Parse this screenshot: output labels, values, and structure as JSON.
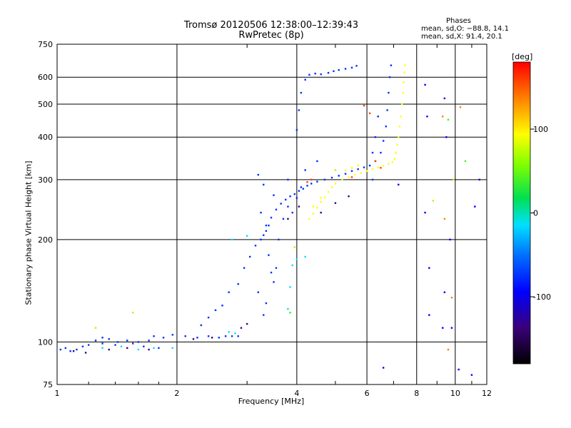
{
  "header": {
    "title": "Tromsø 20120506 12:38:00–12:39:43",
    "subtitle": "RwPretec (8p)"
  },
  "phases_box": {
    "title": "Phases",
    "o_line": "mean, sd,O: −88.8, 14.1",
    "x_line": "mean, sd,X:  91.4, 20.1"
  },
  "chart_data": {
    "type": "scatter",
    "title": "Tromsø 20120506 12:38:00–12:39:43",
    "subtitle": "RwPretec (8p)",
    "xlabel": "Frequency [MHz]",
    "ylabel": "Stationary phase Virtual Height [km]",
    "x_scale": "log",
    "y_scale": "log",
    "xlim": [
      1,
      12
    ],
    "ylim": [
      75,
      750
    ],
    "x_ticks": [
      1,
      2,
      4,
      6,
      8,
      10,
      12
    ],
    "y_ticks": [
      75,
      100,
      200,
      300,
      400,
      500,
      600,
      750
    ],
    "grid": true,
    "colorbar": {
      "label": "[deg]",
      "range": [
        -180,
        180
      ],
      "ticks": [
        -100,
        0,
        100
      ]
    },
    "series": [
      {
        "phase": -95,
        "points": [
          [
            1.02,
            95
          ],
          [
            1.05,
            96
          ],
          [
            1.08,
            94
          ],
          [
            1.12,
            95
          ],
          [
            1.16,
            97
          ],
          [
            1.2,
            98
          ],
          [
            1.25,
            101
          ],
          [
            1.3,
            103
          ],
          [
            1.35,
            102
          ],
          [
            1.42,
            100
          ],
          [
            1.5,
            101
          ],
          [
            1.55,
            99
          ],
          [
            1.6,
            100
          ],
          [
            1.7,
            101
          ],
          [
            1.75,
            104
          ],
          [
            1.85,
            103
          ],
          [
            1.95,
            105
          ],
          [
            2.1,
            104
          ],
          [
            2.25,
            103
          ],
          [
            2.4,
            104
          ],
          [
            2.55,
            103
          ],
          [
            2.65,
            104
          ],
          [
            2.75,
            104
          ],
          [
            2.3,
            112
          ],
          [
            2.4,
            118
          ],
          [
            2.5,
            124
          ],
          [
            2.6,
            128
          ],
          [
            2.7,
            140
          ],
          [
            2.85,
            148
          ],
          [
            2.95,
            165
          ],
          [
            3.05,
            178
          ],
          [
            3.15,
            192
          ],
          [
            3.25,
            200
          ],
          [
            3.3,
            206
          ],
          [
            3.35,
            212
          ],
          [
            3.4,
            220
          ],
          [
            3.45,
            232
          ],
          [
            3.55,
            245
          ],
          [
            3.65,
            255
          ],
          [
            3.75,
            262
          ],
          [
            3.85,
            268
          ],
          [
            3.95,
            272
          ],
          [
            4.05,
            278
          ],
          [
            4.15,
            282
          ],
          [
            4.25,
            288
          ],
          [
            4.35,
            292
          ],
          [
            4.5,
            296
          ],
          [
            4.7,
            300
          ],
          [
            4.9,
            304
          ],
          [
            5.1,
            308
          ],
          [
            5.3,
            312
          ],
          [
            5.5,
            318
          ],
          [
            5.7,
            322
          ],
          [
            5.9,
            326
          ],
          [
            6.1,
            330
          ],
          [
            6.3,
            340
          ],
          [
            6.5,
            360
          ],
          [
            6.6,
            390
          ],
          [
            6.7,
            430
          ],
          [
            6.75,
            480
          ],
          [
            6.8,
            540
          ],
          [
            6.85,
            600
          ],
          [
            6.9,
            650
          ],
          [
            3.25,
            240
          ],
          [
            3.35,
            220
          ],
          [
            3.4,
            180
          ],
          [
            3.45,
            160
          ],
          [
            3.5,
            150
          ],
          [
            3.55,
            165
          ],
          [
            3.6,
            200
          ],
          [
            3.7,
            230
          ],
          [
            3.8,
            250
          ],
          [
            3.9,
            240
          ],
          [
            4.0,
            265
          ],
          [
            4.1,
            285
          ],
          [
            4.0,
            420
          ],
          [
            4.05,
            480
          ],
          [
            4.1,
            540
          ],
          [
            4.2,
            590
          ],
          [
            4.3,
            610
          ],
          [
            4.45,
            615
          ],
          [
            4.6,
            612
          ],
          [
            4.8,
            618
          ],
          [
            4.95,
            625
          ],
          [
            5.1,
            630
          ],
          [
            5.3,
            635
          ],
          [
            5.5,
            640
          ],
          [
            5.65,
            648
          ],
          [
            3.2,
            310
          ],
          [
            3.3,
            290
          ],
          [
            3.5,
            270
          ],
          [
            3.8,
            300
          ],
          [
            4.2,
            320
          ],
          [
            4.5,
            340
          ],
          [
            6.2,
            360
          ],
          [
            6.3,
            400
          ],
          [
            6.4,
            460
          ],
          [
            6.2,
            300
          ],
          [
            3.3,
            120
          ],
          [
            3.35,
            130
          ],
          [
            3.2,
            140
          ],
          [
            2.85,
            104
          ],
          [
            1.8,
            96
          ],
          [
            1.65,
            97
          ],
          [
            1.4,
            98
          ],
          [
            1.3,
            99
          ]
        ]
      },
      {
        "phase": 100,
        "points": [
          [
            4.3,
            230
          ],
          [
            4.4,
            238
          ],
          [
            4.5,
            248
          ],
          [
            4.6,
            258
          ],
          [
            4.7,
            266
          ],
          [
            4.8,
            276
          ],
          [
            4.9,
            285
          ],
          [
            5.0,
            292
          ],
          [
            5.2,
            300
          ],
          [
            5.4,
            305
          ],
          [
            5.6,
            310
          ],
          [
            5.8,
            314
          ],
          [
            6.0,
            318
          ],
          [
            6.2,
            322
          ],
          [
            6.4,
            326
          ],
          [
            6.6,
            330
          ],
          [
            6.8,
            334
          ],
          [
            6.95,
            338
          ],
          [
            7.05,
            345
          ],
          [
            7.1,
            360
          ],
          [
            7.15,
            380
          ],
          [
            7.2,
            400
          ],
          [
            7.25,
            430
          ],
          [
            7.3,
            460
          ],
          [
            7.35,
            500
          ],
          [
            7.4,
            540
          ],
          [
            7.42,
            580
          ],
          [
            7.45,
            620
          ],
          [
            7.48,
            650
          ],
          [
            5.3,
            320
          ],
          [
            5.5,
            325
          ],
          [
            5.7,
            330
          ],
          [
            4.4,
            250
          ],
          [
            4.6,
            265
          ]
        ]
      },
      {
        "phase": -30,
        "points": [
          [
            1.3,
            96
          ],
          [
            1.45,
            97
          ],
          [
            1.6,
            95
          ],
          [
            1.75,
            96
          ],
          [
            1.95,
            96
          ],
          [
            2.7,
            107
          ],
          [
            2.8,
            106
          ],
          [
            2.75,
            200
          ],
          [
            3.0,
            205
          ],
          [
            3.8,
            125
          ],
          [
            3.85,
            145
          ],
          [
            3.9,
            168
          ],
          [
            4.0,
            175
          ],
          [
            4.2,
            178
          ]
        ]
      },
      {
        "phase": -150,
        "points": [
          [
            1.1,
            94
          ],
          [
            1.18,
            93
          ],
          [
            1.35,
            95
          ],
          [
            1.5,
            96
          ],
          [
            1.7,
            95
          ],
          [
            2.2,
            102
          ],
          [
            2.45,
            103
          ],
          [
            2.9,
            110
          ],
          [
            3.0,
            113
          ],
          [
            3.8,
            230
          ],
          [
            4.05,
            250
          ],
          [
            4.6,
            240
          ],
          [
            5.0,
            256
          ],
          [
            5.4,
            268
          ]
        ]
      },
      {
        "phase": 160,
        "points": [
          [
            5.9,
            495
          ],
          [
            6.1,
            470
          ],
          [
            6.3,
            340
          ],
          [
            6.5,
            325
          ],
          [
            4.25,
            295
          ],
          [
            4.35,
            300
          ],
          [
            5.5,
            305
          ]
        ]
      },
      {
        "phase": 60,
        "points": [
          [
            1.25,
            110
          ],
          [
            1.55,
            122
          ],
          [
            3.95,
            190
          ],
          [
            5.0,
            320
          ],
          [
            8.8,
            260
          ],
          [
            9.9,
            300
          ]
        ]
      },
      {
        "phase": 20,
        "points": [
          [
            3.85,
            122
          ],
          [
            9.6,
            450
          ],
          [
            10.6,
            340
          ]
        ]
      },
      {
        "phase": -110,
        "points": [
          [
            8.4,
            570
          ],
          [
            8.5,
            460
          ],
          [
            9.4,
            520
          ],
          [
            9.5,
            400
          ],
          [
            8.4,
            240
          ],
          [
            8.6,
            120
          ],
          [
            9.7,
            200
          ],
          [
            9.4,
            140
          ],
          [
            10.2,
            83
          ],
          [
            11.0,
            80
          ],
          [
            11.2,
            250
          ],
          [
            11.5,
            300
          ],
          [
            7.2,
            290
          ],
          [
            6.6,
            84
          ],
          [
            8.6,
            165
          ],
          [
            9.3,
            110
          ],
          [
            9.8,
            110
          ]
        ]
      },
      {
        "phase": 140,
        "points": [
          [
            9.3,
            460
          ],
          [
            9.4,
            230
          ],
          [
            9.8,
            135
          ],
          [
            9.6,
            95
          ],
          [
            10.3,
            490
          ]
        ]
      }
    ]
  }
}
